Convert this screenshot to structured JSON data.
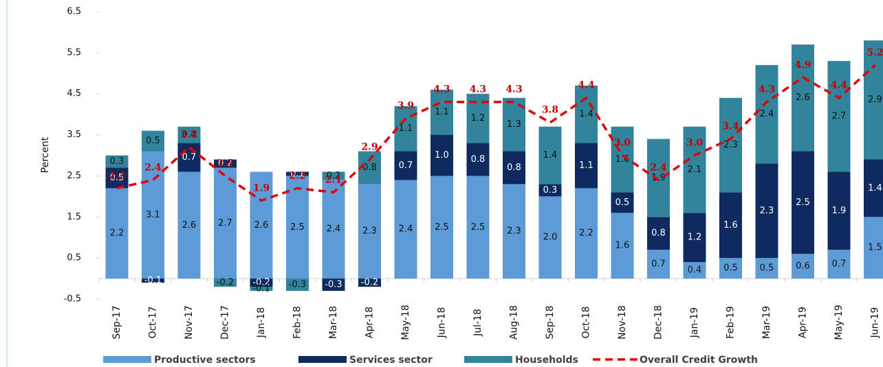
{
  "chart_data": {
    "type": "stacked-bar-line",
    "ylabel": "Percent",
    "categories": [
      "Sep-17",
      "Oct-17",
      "Nov-17",
      "Dec-17",
      "Jan-18",
      "Feb-18",
      "Mar-18",
      "Apr-18",
      "May-18",
      "Jun-18",
      "Jul-18",
      "Aug-18",
      "Sep-18",
      "Oct-18",
      "Nov-18",
      "Dec-18",
      "Jan-19",
      "Feb-19",
      "Mar-19",
      "Apr-19",
      "May-19",
      "Jun-19"
    ],
    "ylim": [
      -0.5,
      6.5
    ],
    "yticks": [
      -0.5,
      0.5,
      1.5,
      2.5,
      3.5,
      4.5,
      5.5,
      6.5
    ],
    "legend": "bottom",
    "series": [
      {
        "name": "Productive sectors",
        "color": "#5d9bd6",
        "values": [
          2.2,
          3.1,
          2.6,
          2.7,
          2.6,
          2.5,
          2.4,
          2.3,
          2.4,
          2.5,
          2.5,
          2.3,
          2.0,
          2.2,
          1.6,
          0.7,
          0.4,
          0.5,
          0.5,
          0.6,
          0.7,
          1.5
        ],
        "value_labels": [
          "2.2",
          "3.1",
          "2.6",
          "2.7",
          "2.6",
          "2.5",
          "2.4",
          "2.3",
          "2.4",
          "2.5",
          "2.5",
          "2.3",
          "2.0",
          "2.2",
          "1.6",
          "0.7",
          "0.4",
          "0.5",
          "0.5",
          "0.6",
          "0.7",
          "1.5"
        ]
      },
      {
        "name": "Services sector",
        "color": "#0f2a5e",
        "values": [
          0.5,
          -0.1,
          0.7,
          0.2,
          -0.2,
          0.1,
          -0.3,
          -0.2,
          0.7,
          1.0,
          0.8,
          0.8,
          0.3,
          1.1,
          0.5,
          0.8,
          1.2,
          1.6,
          2.3,
          2.5,
          1.9,
          1.4
        ],
        "value_labels": [
          "0.5",
          "-0.1",
          "0.7",
          "0.2",
          "-0.2",
          "0.1",
          "-0.3",
          "-0.2",
          "0.7",
          "1.0",
          "0.8",
          "0.8",
          "0.3",
          "1.1",
          "0.5",
          "0.8",
          "1.2",
          "1.6",
          "2.3",
          "2.5",
          "1.9",
          "1.4"
        ]
      },
      {
        "name": "Households",
        "color": "#31849b",
        "values": [
          0.3,
          0.5,
          0.4,
          -0.2,
          -0.1,
          -0.3,
          0.2,
          0.8,
          1.1,
          1.1,
          1.2,
          1.3,
          1.4,
          1.4,
          1.6,
          1.9,
          2.1,
          2.3,
          2.4,
          2.6,
          2.7,
          2.9
        ],
        "value_labels": [
          "0.3",
          "0.5",
          "0.4",
          "-0.2",
          "-0.1",
          "-0.3",
          "0.2",
          "0.8",
          "1.1",
          "1.1",
          "1.2",
          "1.3",
          "1.4",
          "1.4",
          "1.6",
          "1.9",
          "2.1",
          "2.3",
          "2.4",
          "2.6",
          "2.7",
          "2.9"
        ]
      },
      {
        "name": "Overall Credit Growth",
        "color": "#e00000",
        "kind": "line",
        "values": [
          2.2,
          2.4,
          3.2,
          2.5,
          1.9,
          2.2,
          2.1,
          2.9,
          3.9,
          4.3,
          4.3,
          4.3,
          3.8,
          4.4,
          3.0,
          2.4,
          3.0,
          3.4,
          4.3,
          4.9,
          4.4,
          5.2
        ],
        "value_labels": [
          "2.2",
          "2.4",
          "3.2",
          "2.5",
          "1.9",
          "2.2",
          "2.1",
          "2.9",
          "3.9",
          "4.3",
          "4.3",
          "4.3",
          "3.8",
          "4.4",
          "3.0",
          "2.4",
          "3.0",
          "3.4",
          "4.3",
          "4.9",
          "4.4",
          "5.2"
        ]
      }
    ]
  }
}
